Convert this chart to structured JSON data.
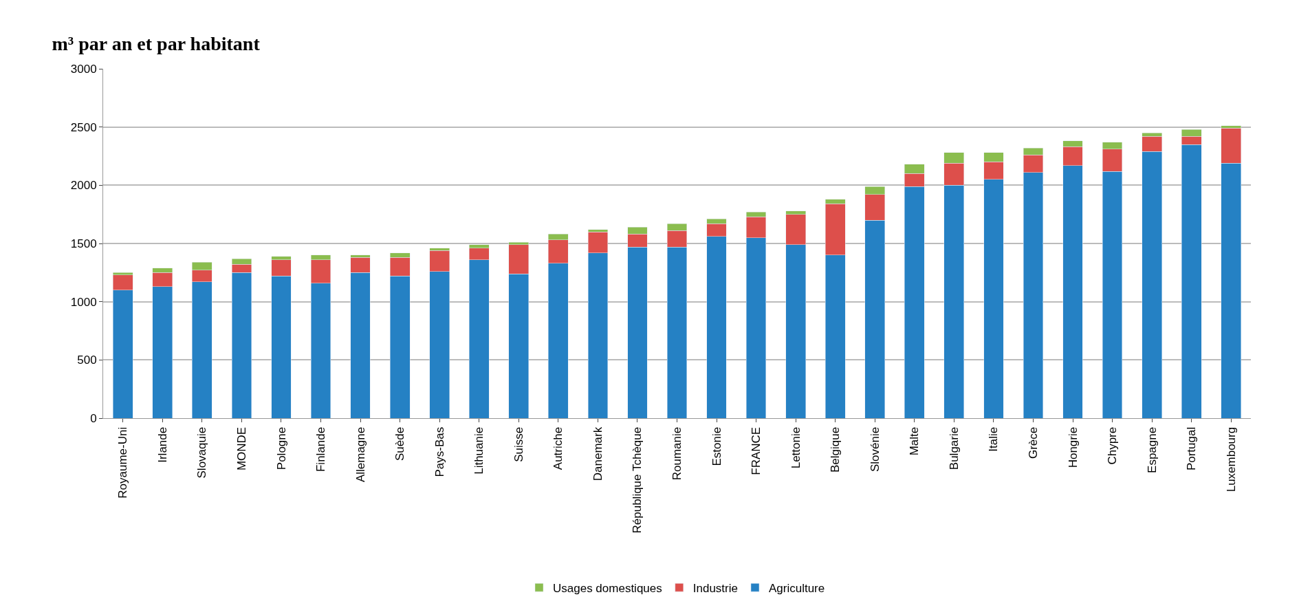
{
  "chart_data": {
    "type": "bar",
    "title": "m³ par an et par habitant",
    "stacked": true,
    "categories": [
      "Royaume-Uni",
      "Irlande",
      "Slovaquie",
      "MONDE",
      "Pologne",
      "Finlande",
      "Allemagne",
      "Suède",
      "Pays-Bas",
      "Lithuanie",
      "Suisse",
      "Autriche",
      "Danemark",
      "République Tchèque",
      "Roumanie",
      "Estonie",
      "FRANCE",
      "Lettonie",
      "Belgique",
      "Slovénie",
      "Malte",
      "Bulgarie",
      "Italie",
      "Grèce",
      "Hongrie",
      "Chypre",
      "Espagne",
      "Portugal",
      "Luxembourg"
    ],
    "series": [
      {
        "name": "Agriculture",
        "color": "#2581c4",
        "values": [
          1100,
          1130,
          1170,
          1250,
          1220,
          1160,
          1250,
          1220,
          1260,
          1360,
          1240,
          1330,
          1420,
          1470,
          1470,
          1560,
          1550,
          1490,
          1400,
          1700,
          1990,
          2000,
          2050,
          2110,
          2170,
          2120,
          2290,
          2350,
          2190
        ]
      },
      {
        "name": "Industrie",
        "color": "#dd4f4b",
        "values": [
          130,
          120,
          100,
          70,
          140,
          200,
          130,
          160,
          180,
          100,
          250,
          200,
          180,
          110,
          140,
          110,
          180,
          260,
          440,
          220,
          110,
          190,
          150,
          150,
          160,
          190,
          130,
          70,
          300
        ]
      },
      {
        "name": "Usages domestiques",
        "color": "#8bbd4f",
        "values": [
          20,
          40,
          70,
          50,
          30,
          40,
          20,
          40,
          20,
          30,
          20,
          50,
          20,
          60,
          60,
          40,
          40,
          30,
          40,
          70,
          80,
          90,
          80,
          60,
          50,
          60,
          30,
          60,
          20
        ]
      }
    ],
    "ylim": [
      0,
      3000
    ],
    "yticks": [
      0,
      500,
      1000,
      1500,
      2000,
      2500,
      3000
    ],
    "grid": "y",
    "legend": "bottom"
  }
}
